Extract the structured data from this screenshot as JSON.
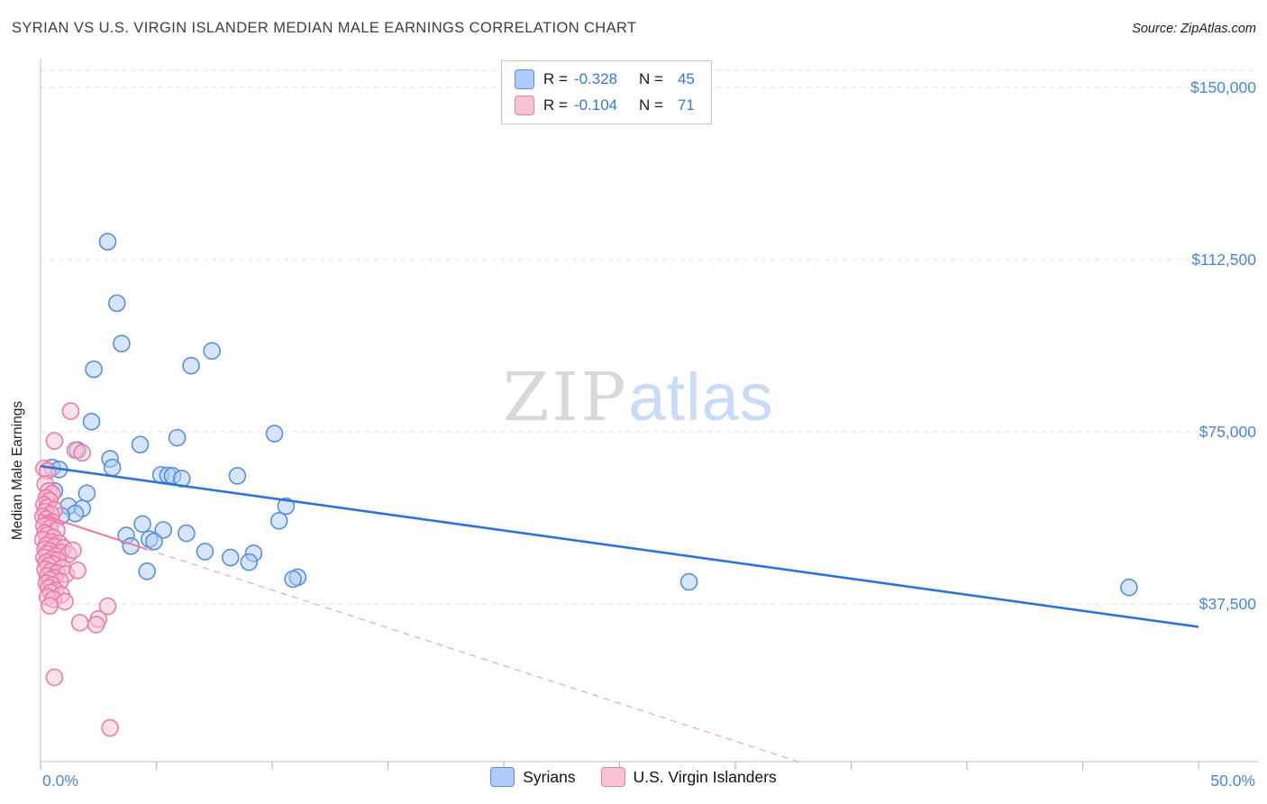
{
  "header": {
    "title": "SYRIAN VS U.S. VIRGIN ISLANDER MEDIAN MALE EARNINGS CORRELATION CHART",
    "source": "Source: ZipAtlas.com"
  },
  "colors": {
    "axis_text": "#4a86d8",
    "grid": "#dcdcdc",
    "axis_line": "#c9c9c9",
    "tick_mark": "#b9b9b9",
    "syrian_fill": "#aecbfa",
    "syrian_stroke": "#5b8fd6",
    "syrian_trend": "#2e74d6",
    "vi_fill": "#f9c2d6",
    "vi_stroke": "#e87da6",
    "vi_trend": "#ef7fa7",
    "vi_trend_dashed": "#f2a6c0"
  },
  "legend_box": {
    "rows": [
      {
        "series": "Syrians",
        "r_label": "R =",
        "r_value": "-0.328",
        "n_label": "N =",
        "n_value": "45"
      },
      {
        "series": "U.S. Virgin Islanders",
        "r_label": "R =",
        "r_value": "-0.104",
        "n_label": "N =",
        "n_value": "71"
      }
    ]
  },
  "watermark": {
    "zip": "ZIP",
    "atlas": "atlas"
  },
  "y_axis": {
    "label": "Median Male Earnings",
    "ticks": [
      {
        "value": 150000,
        "label": "$150,000"
      },
      {
        "value": 112500,
        "label": "$112,500"
      },
      {
        "value": 75000,
        "label": "$75,000"
      },
      {
        "value": 37500,
        "label": "$37,500"
      }
    ]
  },
  "x_axis": {
    "left_label": "0.0%",
    "right_label": "50.0%"
  },
  "bottom_legend": [
    {
      "label": "Syrians"
    },
    {
      "label": "U.S. Virgin Islanders"
    }
  ],
  "chart_data": {
    "type": "scatter",
    "title": "SYRIAN VS U.S. VIRGIN ISLANDER MEDIAN MALE EARNINGS CORRELATION CHART",
    "xlim": [
      0,
      50
    ],
    "ylim": [
      0,
      156000
    ],
    "x_unit": "percent",
    "y_unit": "USD",
    "ylabel": "Median Male Earnings",
    "grid": "horizontal-dashed",
    "legend_position": "bottom-center",
    "series": [
      {
        "key": "syrians",
        "name": "Syrians",
        "R": -0.328,
        "N": 45,
        "fill": "#aecbfa",
        "stroke": "#5b8fd6",
        "points": [
          [
            2.9,
            116400
          ],
          [
            3.3,
            103000
          ],
          [
            3.5,
            94200
          ],
          [
            2.3,
            88600
          ],
          [
            7.4,
            92600
          ],
          [
            6.5,
            89400
          ],
          [
            2.2,
            77200
          ],
          [
            10.1,
            74600
          ],
          [
            5.9,
            73700
          ],
          [
            4.3,
            72200
          ],
          [
            1.6,
            71000
          ],
          [
            3.0,
            69100
          ],
          [
            0.5,
            67200
          ],
          [
            3.1,
            67200
          ],
          [
            0.8,
            66800
          ],
          [
            5.2,
            65600
          ],
          [
            5.5,
            65500
          ],
          [
            5.7,
            65400
          ],
          [
            8.5,
            65400
          ],
          [
            6.1,
            64800
          ],
          [
            0.6,
            62100
          ],
          [
            2.0,
            61600
          ],
          [
            0.3,
            59600
          ],
          [
            1.2,
            58800
          ],
          [
            10.6,
            58800
          ],
          [
            1.8,
            58300
          ],
          [
            1.5,
            57200
          ],
          [
            0.9,
            56700
          ],
          [
            10.3,
            55600
          ],
          [
            4.4,
            54900
          ],
          [
            5.3,
            53600
          ],
          [
            6.3,
            52900
          ],
          [
            3.7,
            52400
          ],
          [
            4.7,
            51600
          ],
          [
            4.9,
            51100
          ],
          [
            3.9,
            50100
          ],
          [
            7.1,
            48900
          ],
          [
            9.2,
            48500
          ],
          [
            8.2,
            47600
          ],
          [
            9.0,
            46600
          ],
          [
            4.6,
            44600
          ],
          [
            11.1,
            43300
          ],
          [
            10.9,
            42900
          ],
          [
            28.0,
            42300
          ],
          [
            47.0,
            41100
          ]
        ]
      },
      {
        "key": "virgin-islanders",
        "name": "U.S. Virgin Islanders",
        "R": -0.104,
        "N": 71,
        "fill": "#f9c2d6",
        "stroke": "#e87da6",
        "points": [
          [
            0.6,
            73000
          ],
          [
            1.3,
            79500
          ],
          [
            0.15,
            67000
          ],
          [
            0.3,
            66500
          ],
          [
            1.5,
            71000
          ],
          [
            1.8,
            70400
          ],
          [
            0.2,
            63600
          ],
          [
            0.35,
            62100
          ],
          [
            0.5,
            61500
          ],
          [
            0.25,
            60600
          ],
          [
            0.4,
            60000
          ],
          [
            0.15,
            59100
          ],
          [
            0.3,
            58500
          ],
          [
            0.6,
            58000
          ],
          [
            0.2,
            57600
          ],
          [
            0.45,
            57000
          ],
          [
            0.1,
            56500
          ],
          [
            0.25,
            56000
          ],
          [
            0.5,
            55400
          ],
          [
            0.35,
            55000
          ],
          [
            0.15,
            54500
          ],
          [
            0.4,
            54000
          ],
          [
            0.7,
            53500
          ],
          [
            0.2,
            53000
          ],
          [
            0.3,
            52500
          ],
          [
            0.55,
            52000
          ],
          [
            0.1,
            51500
          ],
          [
            0.45,
            51000
          ],
          [
            0.8,
            50700
          ],
          [
            0.25,
            50300
          ],
          [
            0.6,
            50000
          ],
          [
            1.0,
            49700
          ],
          [
            0.2,
            49400
          ],
          [
            0.4,
            49000
          ],
          [
            0.9,
            48700
          ],
          [
            0.3,
            48400
          ],
          [
            0.65,
            48000
          ],
          [
            1.2,
            48300
          ],
          [
            0.15,
            47600
          ],
          [
            0.5,
            47200
          ],
          [
            0.75,
            47000
          ],
          [
            1.4,
            49200
          ],
          [
            0.25,
            46600
          ],
          [
            0.55,
            46200
          ],
          [
            0.35,
            45800
          ],
          [
            0.95,
            45400
          ],
          [
            0.2,
            45000
          ],
          [
            0.45,
            44600
          ],
          [
            0.7,
            44200
          ],
          [
            1.1,
            44000
          ],
          [
            0.3,
            43600
          ],
          [
            0.6,
            43200
          ],
          [
            0.4,
            42800
          ],
          [
            0.85,
            42400
          ],
          [
            0.25,
            42000
          ],
          [
            0.5,
            41600
          ],
          [
            1.6,
            44800
          ],
          [
            0.35,
            41000
          ],
          [
            0.65,
            40400
          ],
          [
            0.45,
            40000
          ],
          [
            0.9,
            39500
          ],
          [
            0.3,
            39000
          ],
          [
            0.55,
            38500
          ],
          [
            1.05,
            38000
          ],
          [
            0.4,
            37100
          ],
          [
            2.9,
            37000
          ],
          [
            2.5,
            34200
          ],
          [
            2.4,
            33000
          ],
          [
            1.7,
            33400
          ],
          [
            0.6,
            21500
          ],
          [
            3.0,
            10500
          ]
        ]
      }
    ],
    "trend_lines": [
      {
        "series_key": "syrians",
        "style": "solid",
        "color": "#2e74d6",
        "width": 2.6,
        "from": [
          0,
          67500
        ],
        "to": [
          50,
          32500
        ]
      },
      {
        "series_key": "virgin-islanders",
        "style": "solid",
        "color": "#ef7fa7",
        "width": 2.2,
        "from": [
          0,
          57000
        ],
        "to": [
          4.6,
          49400
        ]
      },
      {
        "series_key": "virgin-islanders",
        "style": "dashed",
        "color": "#f2a6c0",
        "width": 1.3,
        "from": [
          4.6,
          49400
        ],
        "to": [
          32.8,
          3000
        ]
      }
    ]
  }
}
